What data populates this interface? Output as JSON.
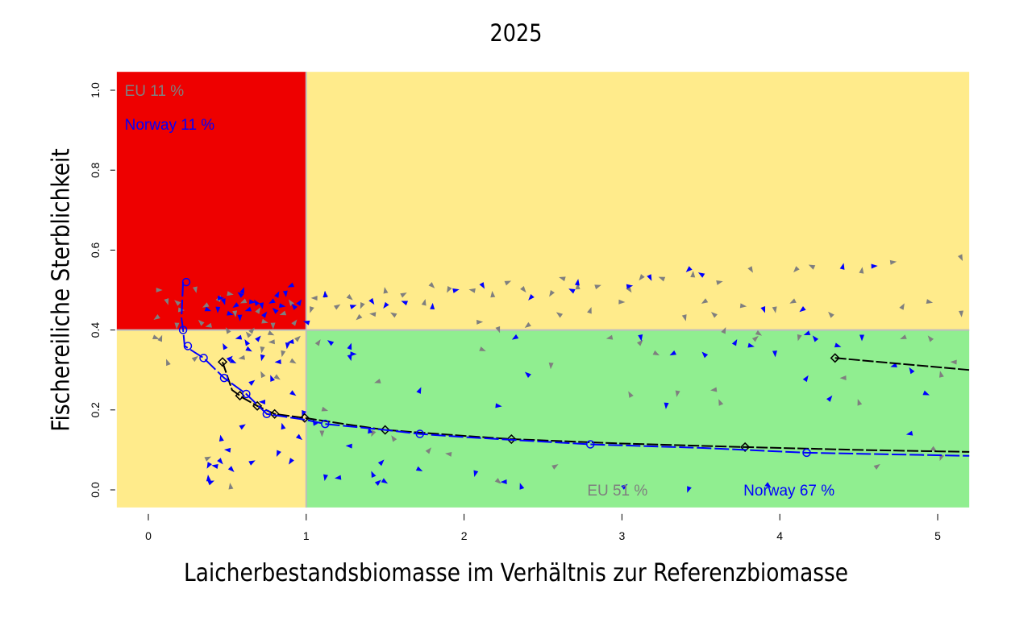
{
  "chart_data": {
    "type": "scatter",
    "title": "2025",
    "xlabel": "Laicherbestandsbiomasse im Verhältnis zur Referenzbiomasse",
    "ylabel": "Fischereiliche Sterblichkeit",
    "xlim": [
      -0.2,
      5.2
    ],
    "ylim": [
      -0.044,
      1.046
    ],
    "x_ticks": [
      "0",
      "1",
      "2",
      "3",
      "4",
      "5"
    ],
    "y_ticks": [
      "0.0",
      "0.2",
      "0.4",
      "0.6",
      "0.8",
      "1.0"
    ],
    "grid": false,
    "reference_lines": {
      "x": 1,
      "y": 0.4
    },
    "zones": [
      {
        "name": "overfished-low-biomass",
        "x": [
          -0.2,
          1
        ],
        "y": [
          0.4,
          1.046
        ],
        "color": "#EE0000"
      },
      {
        "name": "upper-right",
        "x": [
          1,
          5.2
        ],
        "y": [
          0.4,
          1.046
        ],
        "color": "#FFEB8B"
      },
      {
        "name": "lower-left",
        "x": [
          -0.2,
          1
        ],
        "y": [
          -0.044,
          0.4
        ],
        "color": "#FFEB8B"
      },
      {
        "name": "sustainable",
        "x": [
          1,
          5.2
        ],
        "y": [
          -0.044,
          0.4
        ],
        "color": "#90EE90"
      }
    ],
    "annotations": [
      {
        "text": "EU 11 %",
        "x": -0.15,
        "y": 1.0,
        "color": "#7F7F7F"
      },
      {
        "text": "Norway 11 %",
        "x": -0.15,
        "y": 0.915,
        "color": "#0000FF"
      },
      {
        "text": "EU 51 %",
        "x": 2.78,
        "y": 0.0,
        "color": "#7F7F7F"
      },
      {
        "text": "Norway 67 %",
        "x": 3.77,
        "y": 0.0,
        "color": "#0000FF"
      }
    ],
    "series": [
      {
        "name": "EU",
        "color": "#7F7F7F",
        "points": [
          [
            0.07,
            0.5
          ],
          [
            0.12,
            0.47
          ],
          [
            0.05,
            0.43
          ],
          [
            0.18,
            0.47
          ],
          [
            0.08,
            0.38
          ],
          [
            0.21,
            0.45
          ],
          [
            0.3,
            0.5
          ],
          [
            0.36,
            0.46
          ],
          [
            0.33,
            0.42
          ],
          [
            0.45,
            0.48
          ],
          [
            0.52,
            0.49
          ],
          [
            0.55,
            0.44
          ],
          [
            0.6,
            0.47
          ],
          [
            0.63,
            0.39
          ],
          [
            0.7,
            0.45
          ],
          [
            0.74,
            0.42
          ],
          [
            0.79,
            0.41
          ],
          [
            0.85,
            0.44
          ],
          [
            0.9,
            0.47
          ],
          [
            0.93,
            0.42
          ],
          [
            0.05,
            0.38
          ],
          [
            0.18,
            0.41
          ],
          [
            0.38,
            0.41
          ],
          [
            0.5,
            0.4
          ],
          [
            0.66,
            0.4
          ],
          [
            0.78,
            0.39
          ],
          [
            0.72,
            0.35
          ],
          [
            0.59,
            0.33
          ],
          [
            0.72,
            0.29
          ],
          [
            0.95,
            0.38
          ],
          [
            0.92,
            0.32
          ],
          [
            0.85,
            0.34
          ],
          [
            0.78,
            0.37
          ],
          [
            0.12,
            0.32
          ],
          [
            0.3,
            0.33
          ],
          [
            0.82,
            0.28
          ],
          [
            1.03,
            0.45
          ],
          [
            1.05,
            0.48
          ],
          [
            1.12,
            0.49
          ],
          [
            1.2,
            0.46
          ],
          [
            1.28,
            0.48
          ],
          [
            1.35,
            0.46
          ],
          [
            1.42,
            0.44
          ],
          [
            1.5,
            0.5
          ],
          [
            1.62,
            0.49
          ],
          [
            1.8,
            0.51
          ],
          [
            1.9,
            0.5
          ],
          [
            2.05,
            0.5
          ],
          [
            2.18,
            0.49
          ],
          [
            2.28,
            0.52
          ],
          [
            2.38,
            0.5
          ],
          [
            2.55,
            0.49
          ],
          [
            2.62,
            0.53
          ],
          [
            2.72,
            0.51
          ],
          [
            2.85,
            0.51
          ],
          [
            3.05,
            0.5
          ],
          [
            3.12,
            0.53
          ],
          [
            3.25,
            0.53
          ],
          [
            3.45,
            0.54
          ],
          [
            3.62,
            0.52
          ],
          [
            3.82,
            0.55
          ],
          [
            4.1,
            0.55
          ],
          [
            4.2,
            0.56
          ],
          [
            4.52,
            0.55
          ],
          [
            4.72,
            0.57
          ],
          [
            5.15,
            0.58
          ],
          [
            1.33,
            0.43
          ],
          [
            1.55,
            0.44
          ],
          [
            1.75,
            0.47
          ],
          [
            2.1,
            0.42
          ],
          [
            2.22,
            0.4
          ],
          [
            2.4,
            0.41
          ],
          [
            2.6,
            0.44
          ],
          [
            2.8,
            0.45
          ],
          [
            3.0,
            0.47
          ],
          [
            3.4,
            0.43
          ],
          [
            3.52,
            0.47
          ],
          [
            3.58,
            0.44
          ],
          [
            3.65,
            0.4
          ],
          [
            3.77,
            0.46
          ],
          [
            3.97,
            0.45
          ],
          [
            4.08,
            0.47
          ],
          [
            4.32,
            0.44
          ],
          [
            4.78,
            0.46
          ],
          [
            4.95,
            0.47
          ],
          [
            5.15,
            0.44
          ],
          [
            4.78,
            0.38
          ],
          [
            4.95,
            0.38
          ],
          [
            1.08,
            0.37
          ],
          [
            1.12,
            0.2
          ],
          [
            1.1,
            0.14
          ],
          [
            1.45,
            0.27
          ],
          [
            1.55,
            0.13
          ],
          [
            1.78,
            0.1
          ],
          [
            2.12,
            0.35
          ],
          [
            2.55,
            0.31
          ],
          [
            2.92,
            0.38
          ],
          [
            3.05,
            0.24
          ],
          [
            3.12,
            0.37
          ],
          [
            3.22,
            0.34
          ],
          [
            3.35,
            0.24
          ],
          [
            3.58,
            0.25
          ],
          [
            3.62,
            0.22
          ],
          [
            3.85,
            0.38
          ],
          [
            3.87,
            0.39
          ],
          [
            4.12,
            0.38
          ],
          [
            4.4,
            0.28
          ],
          [
            4.5,
            0.22
          ],
          [
            4.62,
            0.06
          ],
          [
            4.98,
            0.1
          ],
          [
            5.02,
            0.08
          ],
          [
            5.1,
            0.32
          ],
          [
            5.02,
            0.29
          ],
          [
            2.58,
            0.06
          ],
          [
            2.22,
            0.02
          ],
          [
            1.42,
            0.14
          ],
          [
            1.9,
            0.09
          ],
          [
            0.52,
            0.01
          ],
          [
            0.38,
            0.08
          ]
        ]
      },
      {
        "name": "Norway",
        "color": "#0000FF",
        "points": [
          [
            0.46,
            0.48
          ],
          [
            0.48,
            0.47
          ],
          [
            0.55,
            0.46
          ],
          [
            0.58,
            0.49
          ],
          [
            0.6,
            0.5
          ],
          [
            0.66,
            0.47
          ],
          [
            0.72,
            0.46
          ],
          [
            0.78,
            0.47
          ],
          [
            0.8,
            0.45
          ],
          [
            0.82,
            0.49
          ],
          [
            0.85,
            0.46
          ],
          [
            0.87,
            0.49
          ],
          [
            0.9,
            0.51
          ],
          [
            0.92,
            0.46
          ],
          [
            0.96,
            0.47
          ],
          [
            0.52,
            0.44
          ],
          [
            0.58,
            0.43
          ],
          [
            0.63,
            0.45
          ],
          [
            0.68,
            0.47
          ],
          [
            0.74,
            0.44
          ],
          [
            0.38,
            0.45
          ],
          [
            0.44,
            0.45
          ],
          [
            0.57,
            0.38
          ],
          [
            0.62,
            0.37
          ],
          [
            0.7,
            0.38
          ],
          [
            0.54,
            0.32
          ],
          [
            0.88,
            0.36
          ],
          [
            0.9,
            0.37
          ],
          [
            0.48,
            0.36
          ],
          [
            0.52,
            0.33
          ],
          [
            0.64,
            0.35
          ],
          [
            0.72,
            0.33
          ],
          [
            0.82,
            0.32
          ],
          [
            0.78,
            0.28
          ],
          [
            0.66,
            0.27
          ],
          [
            0.92,
            0.24
          ],
          [
            0.98,
            0.19
          ],
          [
            0.72,
            0.22
          ],
          [
            0.85,
            0.16
          ],
          [
            0.6,
            0.16
          ],
          [
            0.96,
            0.13
          ],
          [
            0.82,
            0.09
          ],
          [
            0.5,
            0.1
          ],
          [
            0.46,
            0.13
          ],
          [
            0.66,
            0.07
          ],
          [
            0.53,
            0.05
          ],
          [
            0.38,
            0.06
          ],
          [
            0.42,
            0.06
          ],
          [
            0.38,
            0.03
          ],
          [
            0.4,
            0.02
          ],
          [
            0.46,
            0.07
          ],
          [
            0.9,
            0.07
          ],
          [
            1.0,
            0.42
          ],
          [
            1.12,
            0.49
          ],
          [
            1.3,
            0.46
          ],
          [
            1.42,
            0.47
          ],
          [
            1.5,
            0.46
          ],
          [
            1.62,
            0.47
          ],
          [
            1.8,
            0.46
          ],
          [
            1.95,
            0.5
          ],
          [
            2.12,
            0.51
          ],
          [
            2.42,
            0.48
          ],
          [
            2.68,
            0.5
          ],
          [
            2.72,
            0.52
          ],
          [
            3.05,
            0.51
          ],
          [
            3.18,
            0.53
          ],
          [
            3.42,
            0.55
          ],
          [
            3.5,
            0.54
          ],
          [
            4.4,
            0.56
          ],
          [
            4.6,
            0.56
          ],
          [
            3.9,
            0.45
          ],
          [
            4.14,
            0.45
          ],
          [
            1.15,
            0.37
          ],
          [
            1.28,
            0.36
          ],
          [
            1.3,
            0.34
          ],
          [
            1.28,
            0.33
          ],
          [
            2.32,
            0.38
          ],
          [
            2.4,
            0.29
          ],
          [
            1.72,
            0.25
          ],
          [
            2.22,
            0.21
          ],
          [
            3.12,
            0.38
          ],
          [
            3.32,
            0.34
          ],
          [
            3.52,
            0.34
          ],
          [
            3.72,
            0.37
          ],
          [
            3.82,
            0.36
          ],
          [
            3.97,
            0.34
          ],
          [
            4.17,
            0.39
          ],
          [
            4.22,
            0.38
          ],
          [
            4.17,
            0.28
          ],
          [
            4.37,
            0.36
          ],
          [
            4.52,
            0.38
          ],
          [
            4.72,
            0.31
          ],
          [
            4.83,
            0.3
          ],
          [
            4.32,
            0.23
          ],
          [
            4.93,
            0.24
          ],
          [
            3.28,
            0.21
          ],
          [
            4.82,
            0.14
          ],
          [
            1.05,
            0.17
          ],
          [
            1.48,
            0.07
          ],
          [
            1.72,
            0.05
          ],
          [
            1.12,
            0.03
          ],
          [
            1.2,
            0.03
          ],
          [
            1.42,
            0.04
          ],
          [
            1.46,
            0.02
          ],
          [
            1.5,
            0.02
          ],
          [
            2.07,
            0.04
          ],
          [
            2.25,
            0.02
          ],
          [
            2.36,
            0.01
          ],
          [
            3.02,
            0.01
          ],
          [
            3.93,
            0.01
          ],
          [
            3.42,
            0.0
          ],
          [
            1.27,
            0.11
          ],
          [
            1.4,
            0.15
          ]
        ]
      }
    ],
    "curves": [
      {
        "name": "EU-median",
        "color": "#000000",
        "marker": "diamond",
        "points": [
          [
            0.47,
            0.32
          ],
          [
            0.53,
            0.25
          ],
          [
            0.6,
            0.23
          ],
          [
            0.69,
            0.21
          ],
          [
            0.8,
            0.19
          ],
          [
            0.99,
            0.18
          ],
          [
            1.24,
            0.165
          ],
          [
            1.5,
            0.15
          ],
          [
            2.0,
            0.135
          ],
          [
            2.3,
            0.127
          ],
          [
            3.0,
            0.116
          ],
          [
            3.78,
            0.107
          ],
          [
            4.5,
            0.1
          ],
          [
            5.2,
            0.095
          ]
        ],
        "marker_x": [
          0.47,
          0.58,
          0.69,
          0.8,
          0.99,
          1.5,
          2.3,
          3.78
        ]
      },
      {
        "name": "Norway-median",
        "color": "#0000FF",
        "marker": "circle",
        "points": [
          [
            0.22,
            0.52
          ],
          [
            0.21,
            0.43
          ],
          [
            0.22,
            0.4
          ],
          [
            0.23,
            0.36
          ],
          [
            0.35,
            0.33
          ],
          [
            0.48,
            0.28
          ],
          [
            0.62,
            0.24
          ],
          [
            0.75,
            0.19
          ],
          [
            1.0,
            0.175
          ],
          [
            1.12,
            0.165
          ],
          [
            1.5,
            0.15
          ],
          [
            1.72,
            0.14
          ],
          [
            2.0,
            0.132
          ],
          [
            2.8,
            0.114
          ],
          [
            3.5,
            0.105
          ],
          [
            4.17,
            0.093
          ],
          [
            5.2,
            0.085
          ]
        ],
        "marker_x": [
          0.24,
          0.22,
          0.25,
          0.35,
          0.48,
          0.62,
          0.75,
          1.12,
          1.72,
          2.8,
          4.17
        ]
      },
      {
        "name": "EU-median-upper-right",
        "color": "#000000",
        "marker": "diamond",
        "points": [
          [
            4.35,
            0.33
          ],
          [
            5.2,
            0.3
          ]
        ],
        "marker_x": [
          4.35
        ]
      }
    ]
  }
}
